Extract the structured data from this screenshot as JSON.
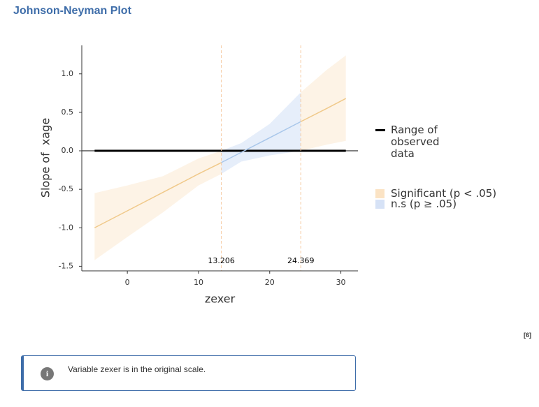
{
  "header": {
    "title": "Johnson-Neyman Plot"
  },
  "chart_data": {
    "type": "johnson-neyman",
    "x_label": "zexer",
    "y_label": "Slope of  xage",
    "xlim": [
      -6.4,
      32.4
    ],
    "ylim": [
      -1.56,
      1.37
    ],
    "xticks": [
      0,
      10,
      20,
      30
    ],
    "yticks": [
      -1.5,
      {
        "value": -1,
        "label": "-1.0"
      },
      -0.5,
      {
        "value": 0,
        "label": "0.0"
      },
      0.5,
      {
        "value": 1,
        "label": "1.0"
      }
    ],
    "bounds": [
      13.206,
      24.369
    ],
    "observed_range": [
      -4.6,
      30.7
    ],
    "legend": [
      {
        "label": "Significant (p < .05)",
        "color": "#fbe3c4"
      },
      {
        "label": "n.s (p ≥ .05)",
        "color": "#d6e2f6"
      }
    ],
    "range_label": "Range of observed data",
    "series": [
      {
        "color": "#f0c98a",
        "band_color": "#fdf3e6",
        "x": [
          -4.6,
          0,
          5,
          10,
          13.206
        ],
        "estimate": [
          -1.0,
          -0.78,
          -0.54,
          -0.3,
          -0.153
        ],
        "lower": [
          -1.42,
          -1.12,
          -0.8,
          -0.45,
          -0.3
        ],
        "upper": [
          -0.55,
          -0.45,
          -0.33,
          -0.1,
          0.0
        ]
      },
      {
        "color": "#a9c7ea",
        "band_color": "#e6eefa",
        "x": [
          13.206,
          16,
          20,
          24.369
        ],
        "estimate": [
          -0.153,
          -0.02,
          0.17,
          0.379
        ],
        "lower": [
          -0.3,
          -0.14,
          -0.06,
          0.0
        ],
        "upper": [
          0.0,
          0.1,
          0.35,
          0.76
        ]
      },
      {
        "color": "#f0c98a",
        "band_color": "#fdf3e6",
        "x": [
          24.369,
          28,
          30.7
        ],
        "estimate": [
          0.379,
          0.55,
          0.68
        ],
        "lower": [
          0.0,
          0.08,
          0.13
        ],
        "upper": [
          0.76,
          1.05,
          1.24
        ]
      }
    ]
  },
  "footnote": "[6]",
  "note": "Variable zexer is in the original scale."
}
